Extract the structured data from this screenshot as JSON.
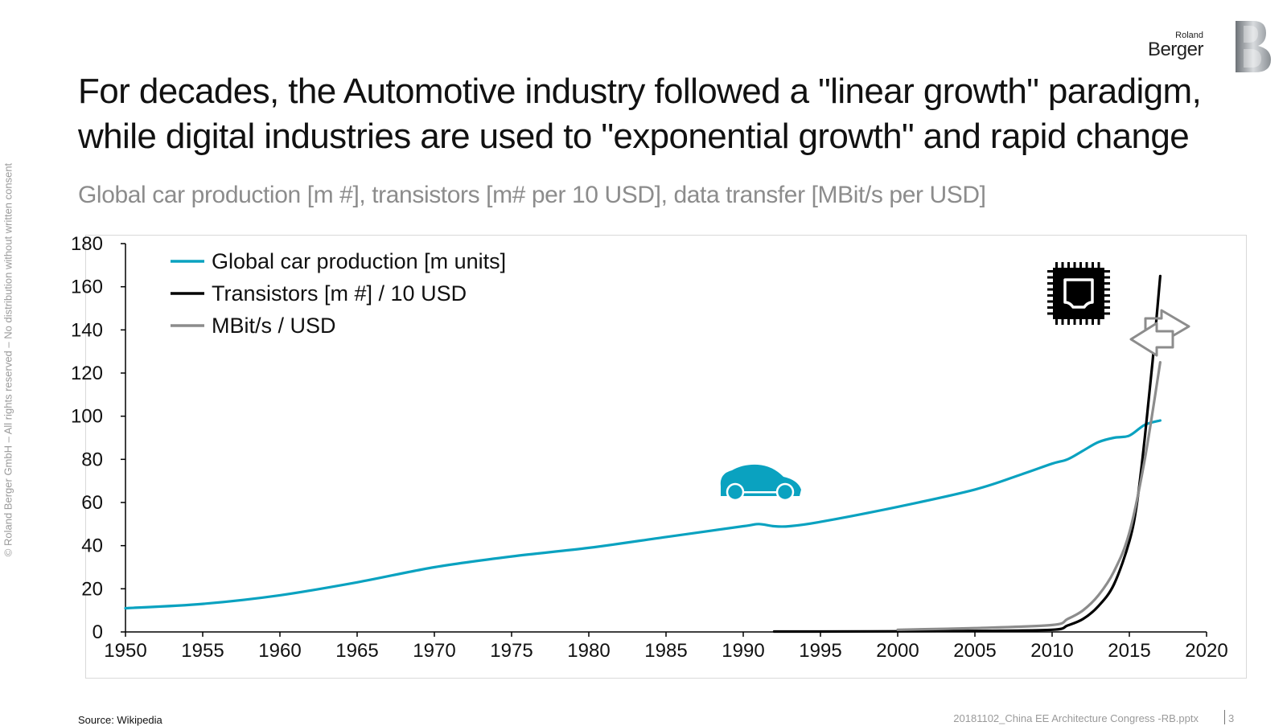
{
  "copyright": "© Roland Berger GmbH – All rights reserved – No distribution without written consent",
  "logo": {
    "line1": "Roland",
    "line2": "Berger"
  },
  "title": "For decades, the Automotive industry followed a \"linear growth\" paradigm, while digital industries are used to \"exponential growth\" and rapid change",
  "subtitle": "Global car production [m #], transistors [m# per 10 USD], data transfer [MBit/s per USD]",
  "footer": {
    "source": "Source: Wikipedia",
    "file": "20181102_China EE Architecture Congress -RB.pptx",
    "page": "3"
  },
  "icons": [
    "car-icon",
    "chip-icon",
    "arrows-icon"
  ],
  "colors": {
    "car": "#0aa2c0",
    "transistors": "#000000",
    "mbit": "#8c8c8c"
  },
  "chart_data": {
    "type": "line",
    "title": "",
    "xlabel": "",
    "ylabel": "",
    "xlim": [
      1950,
      2020
    ],
    "ylim": [
      0,
      180
    ],
    "xticks": [
      1950,
      1955,
      1960,
      1965,
      1970,
      1975,
      1980,
      1985,
      1990,
      1995,
      2000,
      2005,
      2010,
      2015,
      2020
    ],
    "yticks": [
      0,
      20,
      40,
      60,
      80,
      100,
      120,
      140,
      160,
      180
    ],
    "legend": "top-left",
    "grid": false,
    "series": [
      {
        "name": "Global car production [m units]",
        "color": "#0aa2c0",
        "x": [
          1950,
          1955,
          1960,
          1965,
          1970,
          1975,
          1980,
          1985,
          1990,
          1991,
          1992,
          1993,
          1995,
          2000,
          2005,
          2008,
          2010,
          2011,
          2012,
          2013,
          2014,
          2015,
          2016,
          2017
        ],
        "y": [
          11,
          13,
          17,
          23,
          30,
          35,
          39,
          44,
          49,
          50,
          49,
          49,
          51,
          58,
          66,
          73,
          78,
          80,
          84,
          88,
          90,
          91,
          96,
          98
        ]
      },
      {
        "name": "Transistors [m #] / 10 USD",
        "color": "#000000",
        "x": [
          1992,
          1995,
          2000,
          2005,
          2010,
          2011,
          2012,
          2013,
          2014,
          2015,
          2015.5,
          2016,
          2016.5,
          2017
        ],
        "y": [
          0.2,
          0.2,
          0.3,
          0.5,
          1,
          3,
          6,
          12,
          22,
          42,
          60,
          90,
          125,
          165
        ]
      },
      {
        "name": "MBit/s / USD",
        "color": "#8c8c8c",
        "x": [
          2000,
          2005,
          2010,
          2011,
          2012,
          2013,
          2014,
          2015,
          2016,
          2017
        ],
        "y": [
          1,
          1.8,
          3.2,
          6,
          10,
          17,
          28,
          46,
          80,
          125
        ]
      }
    ]
  }
}
